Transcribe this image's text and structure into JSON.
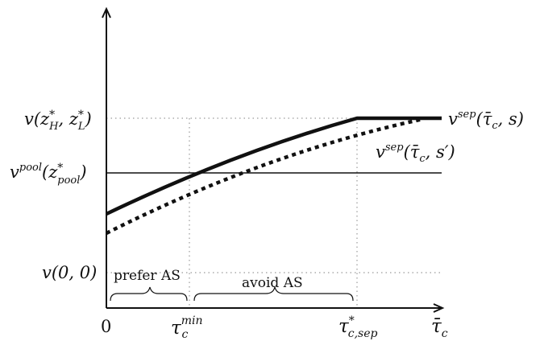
{
  "axes": {
    "origin_label": "0",
    "x_axis_label": "τ̄",
    "x_axis_label_sub": "c"
  },
  "y_labels": {
    "v_full": {
      "base": "v(z",
      "sup1": "*",
      "sub1": "H",
      "mid": ", z",
      "sup2": "*",
      "sub2": "L",
      "end": ")"
    },
    "v_pool": {
      "base": "v",
      "sup": "pool",
      "open": "(z",
      "sup2": "*",
      "sub2": "pool",
      "end": ")"
    },
    "v_zero": "v(0, 0)"
  },
  "x_labels": {
    "tau_min": {
      "base": "τ",
      "sup": "min",
      "sub": "c"
    },
    "tau_sep": {
      "base": "τ",
      "sup": "*",
      "sub": "c,sep"
    }
  },
  "curve_labels": {
    "vsep_s": {
      "base": "v",
      "sup": "sep",
      "args": "(τ̄",
      "sub": "c",
      "tail": ", s)"
    },
    "vsep_sprime": {
      "base": "v",
      "sup": "sep",
      "args": "(τ̄",
      "sub": "c",
      "tail": ", s′)"
    }
  },
  "regions": {
    "prefer": "prefer AS",
    "avoid": "avoid AS"
  },
  "colors": {
    "ink": "#111111",
    "grid": "#9a9a9a"
  }
}
